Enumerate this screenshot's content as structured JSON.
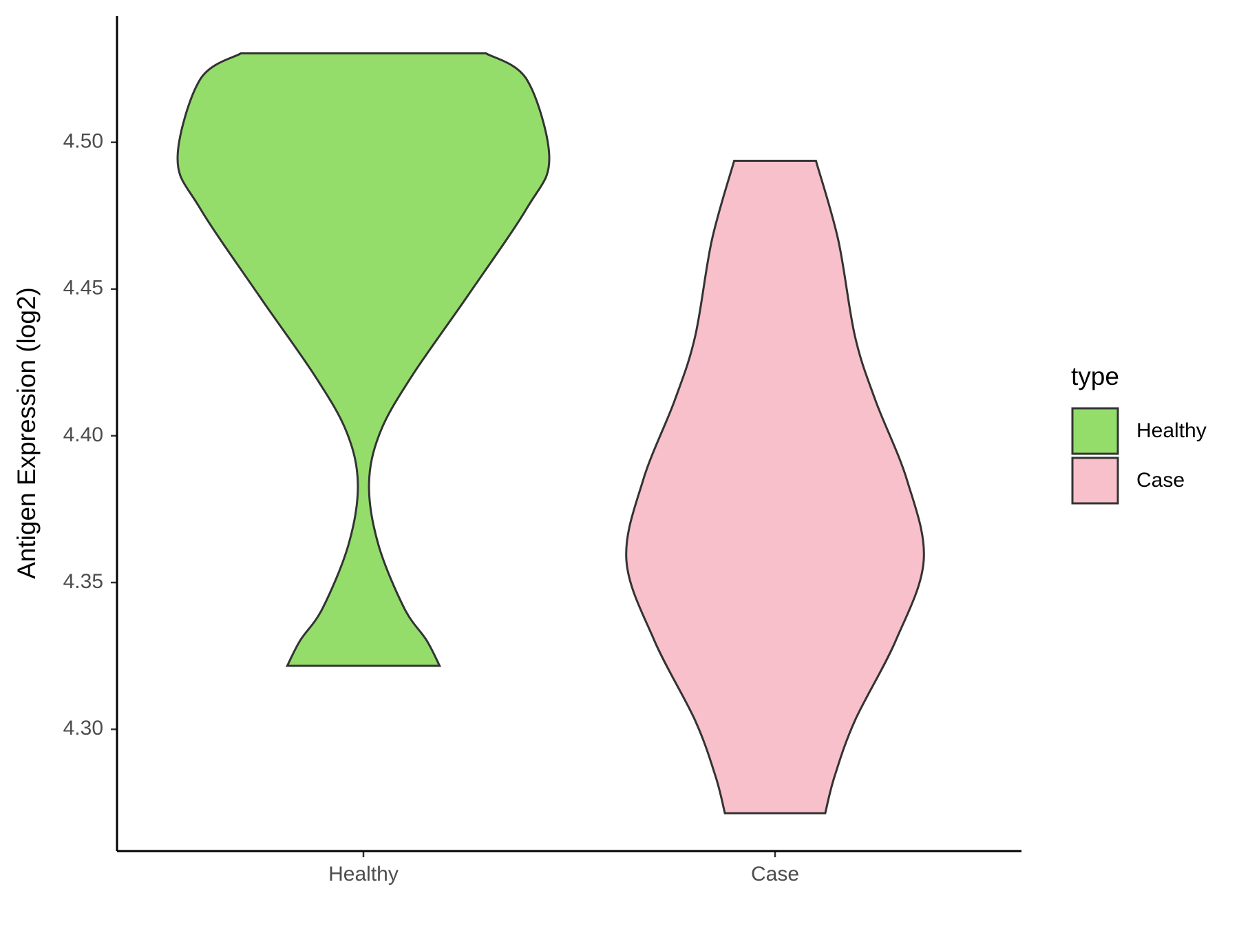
{
  "chart_data": {
    "type": "violin",
    "ylabel": "Antigen Expression (log2)",
    "categories": [
      "Healthy",
      "Case"
    ],
    "legend_title": "type",
    "legend_position": "right",
    "ylim": [
      4.2585,
      4.5431
    ],
    "yticks": [
      {
        "value": 4.3,
        "label": "4.30"
      },
      {
        "value": 4.35,
        "label": "4.35"
      },
      {
        "value": 4.4,
        "label": "4.40"
      },
      {
        "value": 4.45,
        "label": "4.45"
      },
      {
        "value": 4.5,
        "label": "4.50"
      }
    ],
    "series": [
      {
        "name": "Healthy",
        "color": "#94dd6b",
        "y": [
          4.5303,
          4.5213,
          4.4945,
          4.4776,
          4.4476,
          4.4203,
          4.4012,
          4.3835,
          4.363,
          4.3412,
          4.3303,
          4.3216
        ],
        "density": [
          0.66,
          0.88,
          1,
          0.88,
          0.56,
          0.26,
          0.09,
          0.03,
          0.08,
          0.22,
          0.34,
          0.41
        ]
      },
      {
        "name": "Case",
        "color": "#f7c0cb",
        "y": [
          4.4937,
          4.4667,
          4.4339,
          4.4121,
          4.3849,
          4.3576,
          4.3303,
          4.303,
          4.2839,
          4.2714
        ],
        "density": [
          0.22,
          0.34,
          0.43,
          0.54,
          0.71,
          0.8,
          0.65,
          0.43,
          0.32,
          0.27
        ]
      }
    ]
  }
}
